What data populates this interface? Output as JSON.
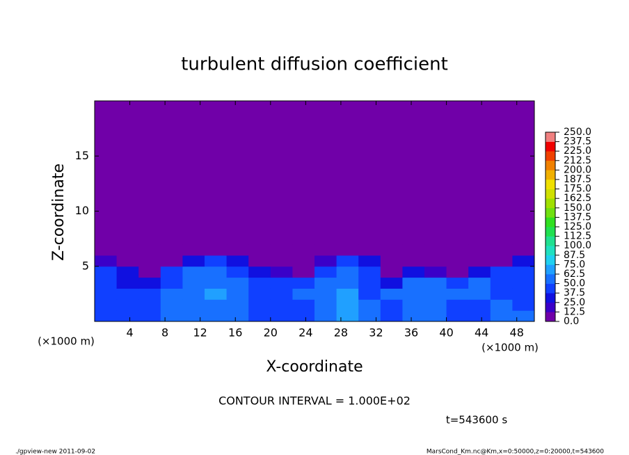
{
  "chart_data": {
    "type": "heatmap",
    "title": "turbulent diffusion coefficient",
    "x_label": "X-coordinate",
    "y_label": "Z-coordinate",
    "x_unit": "(×1000 m)",
    "y_unit": "(×1000 m)",
    "annotation": "CONTOUR INTERVAL = 1.000E+02",
    "time_label": "t=543600 s",
    "footer_left": "./gpview-new  2011-09-02",
    "footer_right": "MarsCond_Km.nc@Km,x=0:50000,z=0:20000,t=543600",
    "xlim": [
      0,
      50
    ],
    "ylim": [
      0,
      20
    ],
    "xticks": [
      4,
      8,
      12,
      16,
      20,
      24,
      28,
      32,
      36,
      40,
      44,
      48
    ],
    "yticks": [
      5,
      10,
      15
    ],
    "xbins": [
      0,
      2.5,
      5,
      7.5,
      10,
      12.5,
      15,
      17.5,
      20,
      22.5,
      25,
      27.5,
      30,
      32.5,
      35,
      37.5,
      40,
      42.5,
      45,
      47.5,
      50
    ],
    "ybins": [
      0,
      1,
      2,
      3,
      4,
      5,
      6,
      7,
      20
    ],
    "z": [
      [
        45,
        40,
        45,
        50,
        50,
        60,
        55,
        45,
        45,
        40,
        50,
        70,
        50,
        45,
        50,
        55,
        45,
        45,
        50,
        50
      ],
      [
        45,
        40,
        45,
        50,
        55,
        60,
        55,
        45,
        45,
        45,
        55,
        65,
        50,
        45,
        55,
        60,
        45,
        45,
        50,
        45
      ],
      [
        40,
        40,
        45,
        50,
        55,
        65,
        50,
        45,
        45,
        50,
        60,
        65,
        45,
        50,
        60,
        60,
        50,
        50,
        45,
        45
      ],
      [
        40,
        35,
        35,
        45,
        55,
        60,
        50,
        45,
        45,
        40,
        55,
        60,
        40,
        30,
        55,
        50,
        40,
        50,
        45,
        45
      ],
      [
        40,
        30,
        5,
        40,
        50,
        55,
        45,
        35,
        20,
        5,
        45,
        55,
        40,
        0,
        25,
        20,
        5,
        25,
        40,
        45
      ],
      [
        20,
        0,
        0,
        5,
        30,
        40,
        30,
        5,
        0,
        0,
        20,
        45,
        25,
        0,
        0,
        0,
        0,
        0,
        5,
        35
      ],
      [
        0,
        0,
        0,
        0,
        0,
        5,
        0,
        0,
        0,
        0,
        0,
        10,
        0,
        0,
        0,
        0,
        0,
        0,
        0,
        5
      ],
      [
        0,
        0,
        0,
        0,
        0,
        0,
        0,
        0,
        0,
        0,
        0,
        0,
        0,
        0,
        0,
        0,
        0,
        0,
        0,
        0
      ]
    ],
    "levels": [
      {
        "value": 0,
        "label": "0.0"
      },
      12.5,
      {
        "value": 25,
        "label": "25.0"
      },
      37.5,
      {
        "value": 50,
        "label": "50.0"
      },
      62.5,
      {
        "value": 75,
        "label": "75.0"
      },
      87.5,
      {
        "value": 100,
        "label": "100.0"
      },
      112.5,
      {
        "value": 125,
        "label": "125.0"
      },
      137.5,
      {
        "value": 150,
        "label": "150.0"
      },
      162.5,
      {
        "value": 175,
        "label": "175.0"
      },
      187.5,
      {
        "value": 200,
        "label": "200.0"
      },
      212.5,
      {
        "value": 225,
        "label": "225.0"
      },
      237.5,
      {
        "value": 250,
        "label": "250.0"
      }
    ],
    "colors": [
      "#7000a8",
      "#3a00c8",
      "#1010e0",
      "#1040ff",
      "#1870ff",
      "#20a0ff",
      "#20d0f0",
      "#20e0c0",
      "#20e090",
      "#20e050",
      "#30e020",
      "#70e010",
      "#a0e000",
      "#d0e000",
      "#f0e000",
      "#f0b000",
      "#f08000",
      "#f04000",
      "#f00000",
      "#f08080"
    ]
  }
}
